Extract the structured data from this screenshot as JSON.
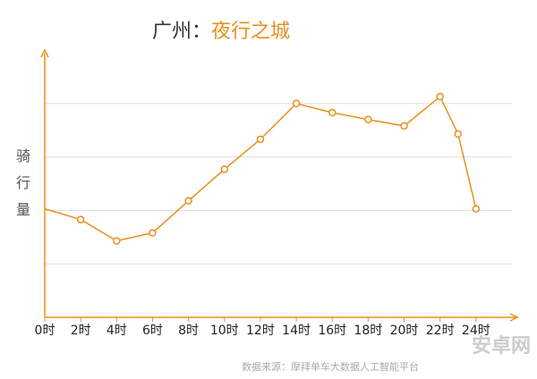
{
  "chart_data": {
    "type": "line",
    "title_parts": [
      "广州：",
      "夜行之城"
    ],
    "title_colors": [
      "#333333",
      "#e8901c"
    ],
    "y_label": "骑行量",
    "x": [
      0,
      2,
      4,
      6,
      8,
      10,
      12,
      14,
      16,
      18,
      20,
      22,
      23,
      24
    ],
    "series": [
      {
        "color": "#e8901c",
        "values": [
          2.03,
          1.83,
          1.43,
          1.58,
          2.18,
          2.77,
          3.33,
          4.0,
          3.83,
          3.7,
          3.58,
          4.13,
          3.43,
          2.03
        ]
      }
    ],
    "xlim": [
      0,
      26
    ],
    "xticks": [
      {
        "value": 0,
        "label": "0时"
      },
      {
        "value": 2,
        "label": "2时"
      },
      {
        "value": 4,
        "label": "4时"
      },
      {
        "value": 6,
        "label": "6时"
      },
      {
        "value": 8,
        "label": "8时"
      },
      {
        "value": 10,
        "label": "10时"
      },
      {
        "value": 12,
        "label": "12时"
      },
      {
        "value": 14,
        "label": "14时"
      },
      {
        "value": 16,
        "label": "16时"
      },
      {
        "value": 18,
        "label": "18时"
      },
      {
        "value": 20,
        "label": "20时"
      },
      {
        "value": 22,
        "label": "22时"
      },
      {
        "value": 24,
        "label": "24时"
      }
    ],
    "ylim": [
      0,
      5
    ],
    "ygrid": [
      1,
      2,
      3,
      4
    ],
    "axis_color": "#e8901c",
    "source": "数据来源：摩拜单车大数据人工智能平台",
    "watermark": "安卓网"
  }
}
